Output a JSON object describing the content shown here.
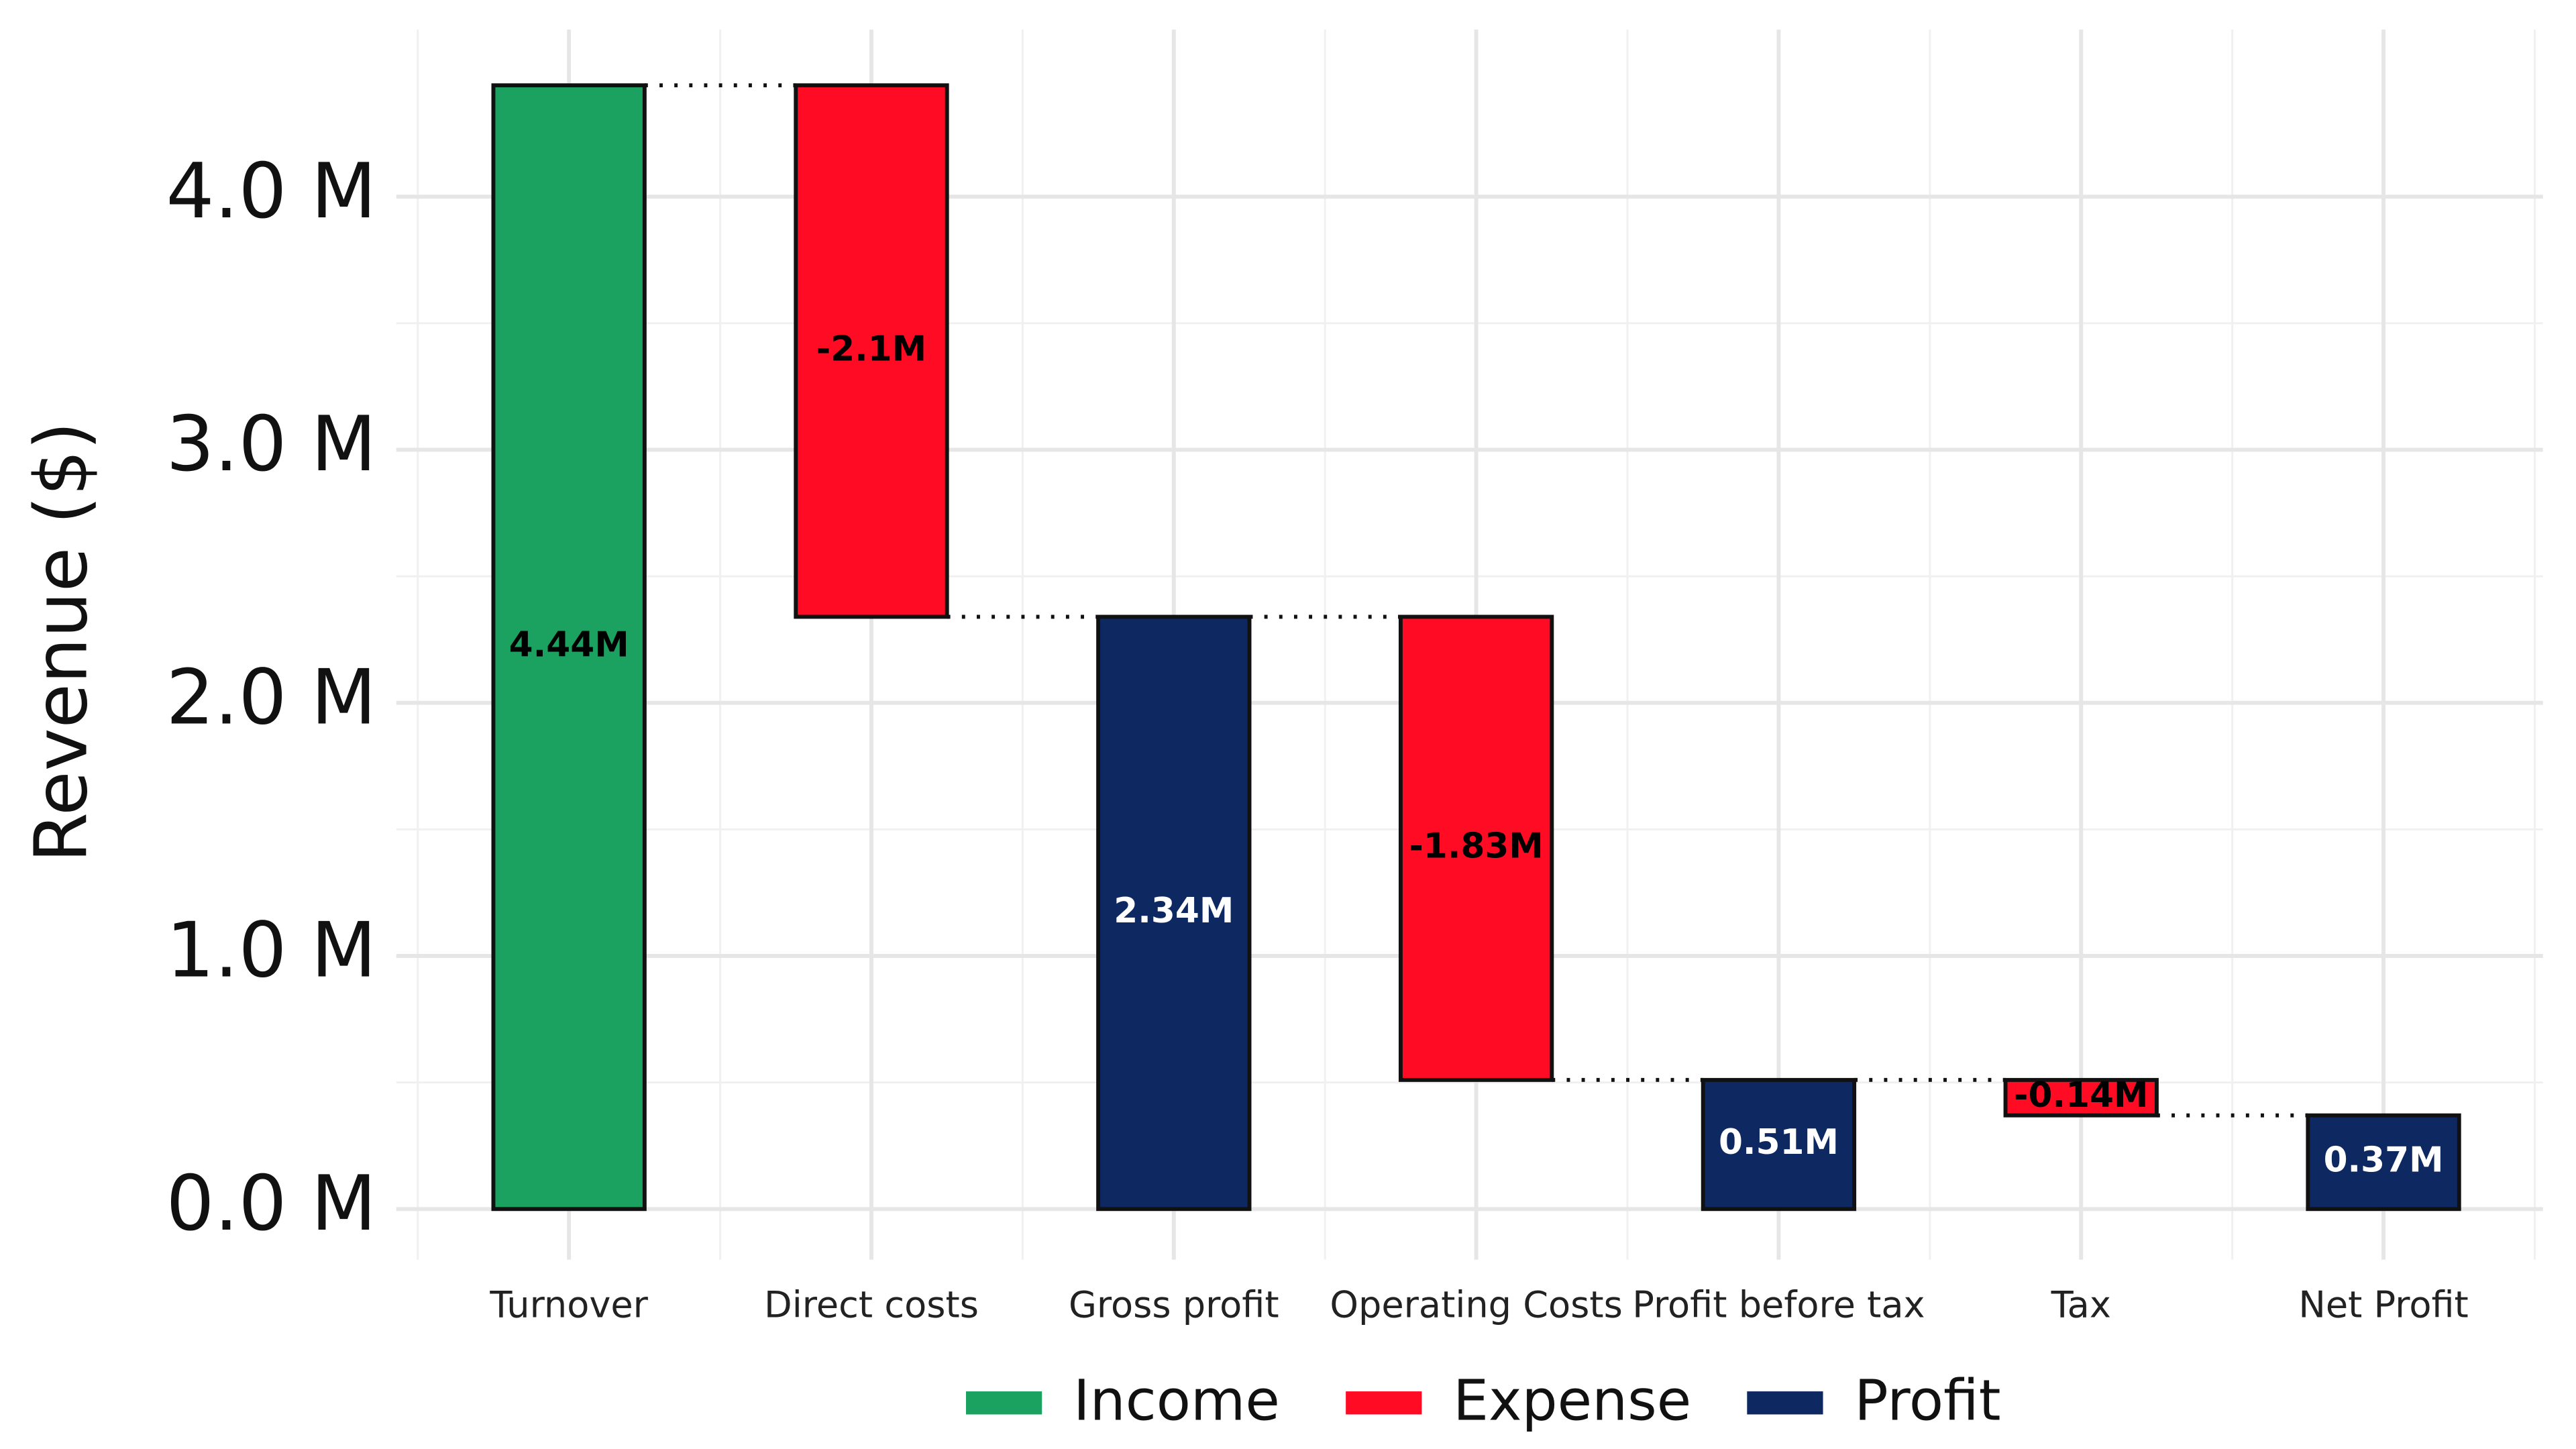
{
  "chart_data": {
    "type": "waterfall",
    "y_axis_label": "Revenue ($)",
    "categories": [
      "Turnover",
      "Direct costs",
      "Gross profit",
      "Operating Costs",
      "Profit before tax",
      "Tax",
      "Net Profit"
    ],
    "values": [
      4440000,
      -2100000,
      2340000,
      -1830000,
      510000,
      -140000,
      370000
    ],
    "value_labels": [
      "4.44M",
      "-2.1M",
      "2.34M",
      "-1.83M",
      "0.51M",
      "-0.14M",
      "0.37M"
    ],
    "kinds": [
      0,
      1,
      2,
      1,
      2,
      1,
      2
    ],
    "legend": [
      {
        "name": "Income",
        "color": "#1ba261"
      },
      {
        "name": "Expense",
        "color": "#ff0c24"
      },
      {
        "name": "Profit",
        "color": "#0e2862"
      }
    ],
    "ylim": [
      -200000,
      4660000
    ],
    "yticks": [
      {
        "value": 0,
        "label": "0.0 M"
      },
      {
        "value": 1000000,
        "label": "1.0 M"
      },
      {
        "value": 2000000,
        "label": "2.0 M"
      },
      {
        "value": 3000000,
        "label": "3.0 M"
      },
      {
        "value": 4000000,
        "label": "4.0 M"
      }
    ],
    "grid": true
  }
}
